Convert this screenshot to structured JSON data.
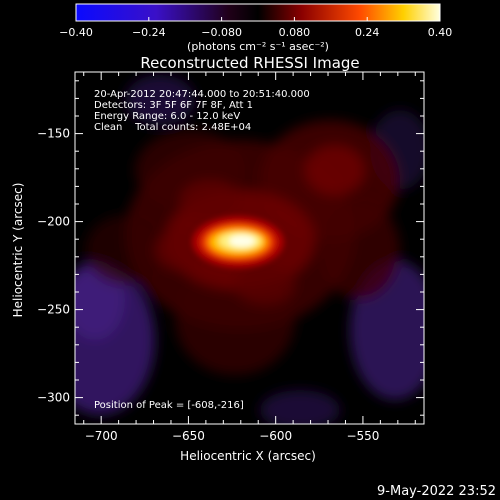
{
  "chart_data": {
    "type": "heatmap",
    "title": "Reconstructed RHESSI Image",
    "xlabel": "Heliocentric X (arcsec)",
    "ylabel": "Heliocentric Y (arcsec)",
    "xlim": [
      -715,
      -515
    ],
    "ylim": [
      -315,
      -115
    ],
    "x_ticks": [
      -700,
      -650,
      -600,
      -550
    ],
    "y_ticks": [
      -300,
      -250,
      -200,
      -150
    ],
    "peak": {
      "x": -608,
      "y": -216,
      "value": 0.4
    },
    "colorbar": {
      "min": -0.4,
      "max": 0.4,
      "ticks": [
        "-0.40",
        "-0.24",
        "-0.080",
        "0.080",
        "0.24",
        "0.40"
      ],
      "unit_label": "(photons cm⁻² s⁻¹ asec⁻²)"
    },
    "annotations": [
      "20-Apr-2012 20:47:44.000 to 20:51:40.000",
      "Detectors: 3F 5F 6F 7F 8F, Att 1",
      "Energy Range: 6.0 - 12.0 keV",
      "Clean    Total counts: 2.48E+04"
    ],
    "peak_label": "Position of Peak = [-608,-216]"
  },
  "footer": {
    "timestamp": "9-May-2022 23:52"
  }
}
